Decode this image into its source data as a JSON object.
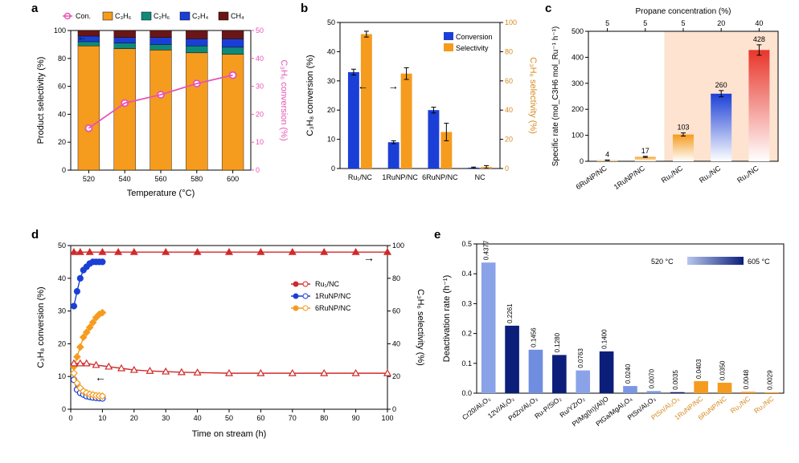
{
  "panel_labels": {
    "a": "a",
    "b": "b",
    "c": "c",
    "d": "d",
    "e": "e"
  },
  "a": {
    "type": "bar+line",
    "x_title": "Temperature (°C)",
    "y_left_title": "Product selectivity (%)",
    "y_right_title": "C₃H₆ conversion (%)",
    "legend": [
      {
        "label": "Con.",
        "color": "#e754b4",
        "marker": "o"
      },
      {
        "label": "C₃H₆",
        "color": "#f59b1e",
        "swatch": true
      },
      {
        "label": "C₂H₆",
        "color": "#0e8a7a",
        "swatch": true
      },
      {
        "label": "C₂H₄",
        "color": "#1b3fd6",
        "swatch": true
      },
      {
        "label": "CH₄",
        "color": "#6a1616",
        "swatch": true
      }
    ],
    "categories": [
      "520",
      "540",
      "560",
      "580",
      "600"
    ],
    "stacks": [
      [
        {
          "v": 89,
          "c": "#f59b1e"
        },
        {
          "v": 3,
          "c": "#0e8a7a"
        },
        {
          "v": 4,
          "c": "#1b3fd6"
        },
        {
          "v": 4,
          "c": "#6a1616"
        }
      ],
      [
        {
          "v": 87,
          "c": "#f59b1e"
        },
        {
          "v": 4,
          "c": "#0e8a7a"
        },
        {
          "v": 4,
          "c": "#1b3fd6"
        },
        {
          "v": 5,
          "c": "#6a1616"
        }
      ],
      [
        {
          "v": 86,
          "c": "#f59b1e"
        },
        {
          "v": 4,
          "c": "#0e8a7a"
        },
        {
          "v": 5,
          "c": "#1b3fd6"
        },
        {
          "v": 5,
          "c": "#6a1616"
        }
      ],
      [
        {
          "v": 84,
          "c": "#f59b1e"
        },
        {
          "v": 5,
          "c": "#0e8a7a"
        },
        {
          "v": 5,
          "c": "#1b3fd6"
        },
        {
          "v": 6,
          "c": "#6a1616"
        }
      ],
      [
        {
          "v": 83,
          "c": "#f59b1e"
        },
        {
          "v": 5,
          "c": "#0e8a7a"
        },
        {
          "v": 6,
          "c": "#1b3fd6"
        },
        {
          "v": 6,
          "c": "#6a1616"
        }
      ]
    ],
    "y_left": {
      "min": 0,
      "max": 100,
      "ticks": [
        0,
        20,
        40,
        60,
        80,
        100
      ]
    },
    "y_right": {
      "min": 0,
      "max": 50,
      "ticks": [
        0,
        10,
        20,
        30,
        40,
        50
      ]
    },
    "line": {
      "color": "#e754b4",
      "values": [
        15,
        24,
        27,
        31,
        34
      ]
    }
  },
  "b": {
    "type": "grouped-bar",
    "x_title": "",
    "y_left_title": "C₃H₈ conversion (%)",
    "y_right_title": "C₃H₆ selectivity (%)",
    "y_right_color": "#d68a1e",
    "legend": [
      {
        "label": "Conversion",
        "color": "#1b3fd6"
      },
      {
        "label": "Selectivity",
        "color": "#f59b1e"
      }
    ],
    "categories": [
      "Ru₁/NC",
      "1RuNP/NC",
      "6RuNP/NC",
      "NC"
    ],
    "conv": {
      "color": "#1b3fd6",
      "vals": [
        33,
        9,
        20,
        0.3
      ],
      "err": [
        1,
        0.5,
        1,
        0.2
      ]
    },
    "sel": {
      "color": "#f59b1e",
      "vals": [
        92,
        65,
        25,
        1
      ],
      "err": [
        2,
        4,
        6,
        1
      ]
    },
    "y_left": {
      "min": 0,
      "max": 50,
      "ticks": [
        0,
        10,
        20,
        30,
        40,
        50
      ]
    },
    "y_right": {
      "min": 0,
      "max": 100,
      "ticks": [
        0,
        20,
        40,
        60,
        80,
        100
      ]
    }
  },
  "c": {
    "type": "bar",
    "x_top_title": "Propane concentration (%)",
    "y_title": "Specific rate (mol_{C3H6} mol_{Ru}⁻¹ h⁻¹)",
    "top_ticks": [
      "5",
      "5",
      "5",
      "20",
      "40"
    ],
    "categories": [
      "6RuNP/NC",
      "1RuNP/NC",
      "Ru₁/NC",
      "Ru₁/NC",
      "Ru₁/NC"
    ],
    "values": [
      4,
      17,
      103,
      260,
      428
    ],
    "value_labels": [
      "4",
      "17",
      "103",
      "260",
      "428"
    ],
    "colors": [
      "#f59b1e",
      "#f59b1e",
      "#f59b1e",
      "#1b3fd6",
      "#e8352a"
    ],
    "highlight_range": [
      2,
      4
    ],
    "highlight_color": "#fde3d0",
    "y": {
      "min": 0,
      "max": 500,
      "ticks": [
        0,
        100,
        200,
        300,
        400,
        500
      ]
    },
    "err": [
      1,
      2,
      6,
      12,
      20
    ]
  },
  "d": {
    "type": "time-series",
    "x_title": "Time on stream (h)",
    "y_left_title": "C₃H₈ conversion (%)",
    "y_right_title": "C₃H₆ selectivity (%)",
    "legend": [
      {
        "label": "Ru₁/NC",
        "color": "#d02a2a",
        "marker": "▼"
      },
      {
        "label": "1RuNP/NC",
        "color": "#1b3fd6",
        "marker": "●"
      },
      {
        "label": "6RuNP/NC",
        "color": "#f59b1e",
        "marker": "◆"
      }
    ],
    "x": {
      "min": 0,
      "max": 100,
      "ticks": [
        0,
        10,
        20,
        30,
        40,
        50,
        60,
        70,
        80,
        90,
        100
      ]
    },
    "y_left": {
      "min": 0,
      "max": 50,
      "ticks": [
        0,
        10,
        20,
        30,
        40,
        50
      ]
    },
    "y_right": {
      "min": 0,
      "max": 100,
      "ticks": [
        0,
        20,
        40,
        60,
        80,
        100
      ]
    },
    "series": {
      "ru1_sel": {
        "color": "#d02a2a",
        "filled": true,
        "pts": [
          [
            1,
            96
          ],
          [
            3,
            96
          ],
          [
            6,
            96
          ],
          [
            10,
            96
          ],
          [
            15,
            96
          ],
          [
            20,
            96
          ],
          [
            30,
            96
          ],
          [
            40,
            96
          ],
          [
            50,
            96
          ],
          [
            60,
            96
          ],
          [
            70,
            96
          ],
          [
            80,
            96
          ],
          [
            90,
            96
          ],
          [
            100,
            96
          ]
        ]
      },
      "ru1_conv": {
        "color": "#d02a2a",
        "filled": false,
        "pts": [
          [
            1,
            14
          ],
          [
            3,
            14
          ],
          [
            5,
            14
          ],
          [
            8,
            13.5
          ],
          [
            12,
            13
          ],
          [
            16,
            12.5
          ],
          [
            20,
            12
          ],
          [
            25,
            11.7
          ],
          [
            30,
            11.5
          ],
          [
            35,
            11.3
          ],
          [
            40,
            11.2
          ],
          [
            50,
            11
          ],
          [
            60,
            11
          ],
          [
            70,
            11
          ],
          [
            80,
            11
          ],
          [
            90,
            11
          ],
          [
            100,
            11
          ]
        ]
      },
      "nu1_sel": {
        "color": "#1b3fd6",
        "filled": true,
        "pts": [
          [
            1,
            63
          ],
          [
            2,
            72
          ],
          [
            3,
            80
          ],
          [
            4,
            85
          ],
          [
            5,
            87
          ],
          [
            6,
            89
          ],
          [
            7,
            90
          ],
          [
            8,
            90
          ],
          [
            9,
            90
          ],
          [
            10,
            90
          ]
        ]
      },
      "nu1_conv": {
        "color": "#1b3fd6",
        "filled": false,
        "pts": [
          [
            1,
            9
          ],
          [
            2,
            6
          ],
          [
            3,
            5
          ],
          [
            4,
            4.5
          ],
          [
            5,
            4
          ],
          [
            6,
            3.8
          ],
          [
            7,
            3.6
          ],
          [
            8,
            3.5
          ],
          [
            9,
            3.4
          ],
          [
            10,
            3.3
          ]
        ]
      },
      "nu6_sel": {
        "color": "#f59b1e",
        "filled": true,
        "pts": [
          [
            1,
            26
          ],
          [
            2,
            32
          ],
          [
            3,
            38
          ],
          [
            4,
            44
          ],
          [
            5,
            47
          ],
          [
            6,
            50
          ],
          [
            7,
            53
          ],
          [
            8,
            56
          ],
          [
            9,
            58
          ],
          [
            10,
            59
          ]
        ]
      },
      "nu6_conv": {
        "color": "#f59b1e",
        "filled": false,
        "pts": [
          [
            1,
            11
          ],
          [
            2,
            8
          ],
          [
            3,
            6.5
          ],
          [
            4,
            5.5
          ],
          [
            5,
            5
          ],
          [
            6,
            4.6
          ],
          [
            7,
            4.4
          ],
          [
            8,
            4.2
          ],
          [
            9,
            4.1
          ],
          [
            10,
            4
          ]
        ]
      }
    }
  },
  "e": {
    "type": "bar",
    "y_title": "Deactivation rate (h⁻¹)",
    "y": {
      "min": 0,
      "max": 0.5,
      "ticks": [
        0,
        0.1,
        0.2,
        0.3,
        0.4,
        0.5
      ]
    },
    "gradient_label_min": "520 °C",
    "gradient_label_max": "605 °C",
    "gradient_colors": [
      "#b8c6ee",
      "#0b1f7a"
    ],
    "bars": [
      {
        "cat": "Cr20/Al₂O₃",
        "v": 0.4377,
        "lbl": "0.4377",
        "c": "#8aa3e8",
        "lc": "#000"
      },
      {
        "cat": "12V/Al₂O₃",
        "v": 0.2261,
        "lbl": "0.2261",
        "c": "#0b1f7a",
        "lc": "#000"
      },
      {
        "cat": "PdZn/Al₂O₃",
        "v": 0.1456,
        "lbl": "0.1456",
        "c": "#6f8ee0",
        "lc": "#000"
      },
      {
        "cat": "Ru-P/SiO₂",
        "v": 0.128,
        "lbl": "0.1280",
        "c": "#0b1f7a",
        "lc": "#000"
      },
      {
        "cat": "Ru/YZrO₂",
        "v": 0.0763,
        "lbl": "0.0763",
        "c": "#8aa3e8",
        "lc": "#000"
      },
      {
        "cat": "Pt/Mg(In)(Al)O",
        "v": 0.14,
        "lbl": "0.1400",
        "c": "#0b1f7a",
        "lc": "#000"
      },
      {
        "cat": "PtGa/MgAl₂O₄",
        "v": 0.024,
        "lbl": "0.0240",
        "c": "#7a97e4",
        "lc": "#000"
      },
      {
        "cat": "PtSn/Al₂O₃",
        "v": 0.007,
        "lbl": "0.0070",
        "c": "#7a97e4",
        "lc": "#000"
      },
      {
        "cat": "PtSn/Al₂O₃",
        "v": 0.0035,
        "lbl": "0.0035",
        "c": "#0b1f7a",
        "lc": "#d68a1e"
      },
      {
        "cat": "1RuNP/NC",
        "v": 0.0403,
        "lbl": "0.0403",
        "c": "#f59b1e",
        "lc": "#d68a1e"
      },
      {
        "cat": "6RuNP/NC",
        "v": 0.035,
        "lbl": "0.0350",
        "c": "#f59b1e",
        "lc": "#d68a1e"
      },
      {
        "cat": "Ru₁/NC",
        "v": 0.0048,
        "lbl": "0.0048",
        "c": "#f59b1e",
        "lc": "#d68a1e"
      },
      {
        "cat": "Ru₁/NC",
        "v": 0.0029,
        "lbl": "0.0029",
        "c": "#f59b1e",
        "lc": "#d68a1e"
      }
    ]
  }
}
